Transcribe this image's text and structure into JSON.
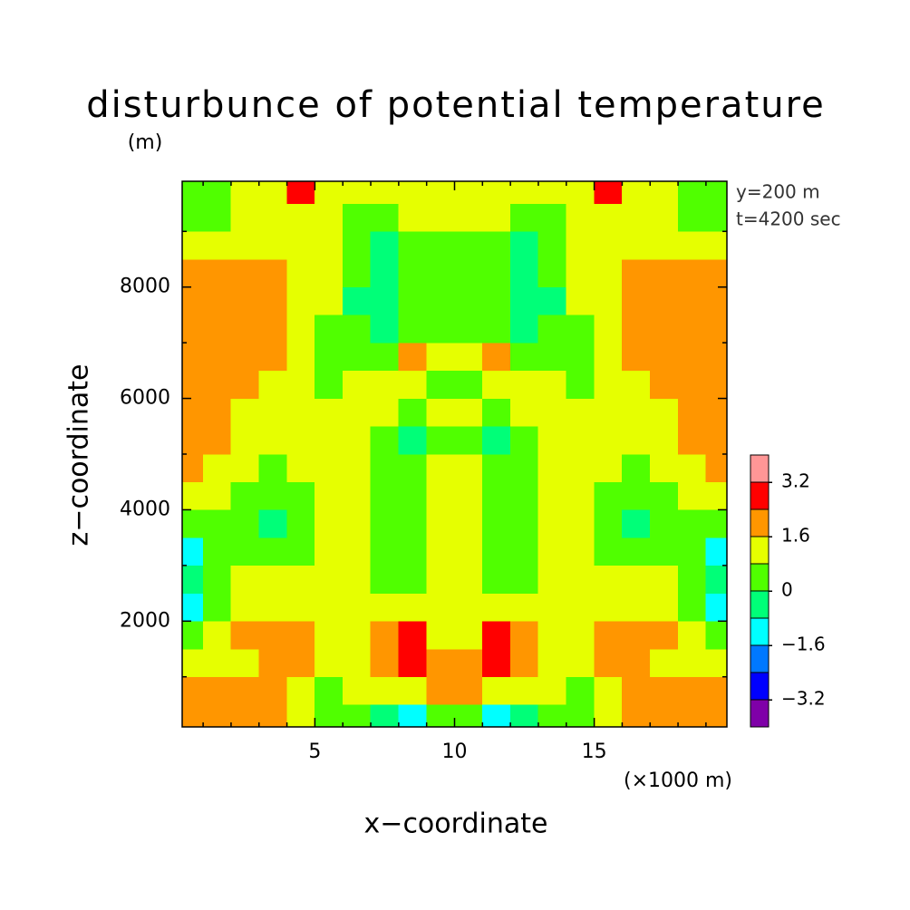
{
  "chart_data": {
    "type": "contour",
    "title": "disturbunce of potential temperature",
    "y_unit": "(m)",
    "annotations": [
      "y=200 m",
      "t=4200 sec"
    ],
    "xlabel": "x−coordinate",
    "ylabel": "z−coordinate",
    "x_unit": "(×1000 m)",
    "xlim": [
      0.25,
      19.75
    ],
    "ylim": [
      100,
      9900
    ],
    "xticks": [
      5,
      10,
      15
    ],
    "xminorticks": [
      1,
      2,
      3,
      4,
      6,
      7,
      8,
      9,
      11,
      12,
      13,
      14,
      16,
      17,
      18,
      19
    ],
    "yticks": [
      2000,
      4000,
      6000,
      8000
    ],
    "yminorticks": [
      1000,
      3000,
      5000,
      7000,
      9000
    ],
    "levels": [
      -4.0,
      -3.2,
      -2.4,
      -1.6,
      -0.8,
      0,
      0.8,
      1.6,
      2.4,
      3.2,
      4.0
    ],
    "colors": [
      "#7f00a8",
      "#0000ff",
      "#0078ff",
      "#00ffff",
      "#00ff78",
      "#50ff00",
      "#e6ff00",
      "#ff9600",
      "#ff0000",
      "#ff9696"
    ],
    "colorbar_ticks": [
      {
        "value": -3.2,
        "label": "−3.2"
      },
      {
        "value": -1.6,
        "label": "−1.6"
      },
      0,
      1.6,
      3.2
    ],
    "x": [
      0.5,
      1.5,
      2.5,
      3.5,
      4.5,
      5.5,
      6.5,
      7.5,
      8.5,
      9.5,
      10.5,
      11.5,
      12.5,
      13.5,
      14.5,
      15.5,
      16.5,
      17.5,
      18.5,
      19.5
    ],
    "z": [
      250,
      750,
      1250,
      1750,
      2250,
      2750,
      3250,
      3750,
      4250,
      4750,
      5250,
      5750,
      6250,
      6750,
      7250,
      7750,
      8250,
      8750,
      9250,
      9750
    ],
    "values": [
      [
        2.0,
        2.0,
        2.0,
        2.0,
        1.2,
        0.4,
        0.4,
        -0.4,
        -1.2,
        0.4,
        0.4,
        -1.2,
        -0.4,
        0.4,
        0.4,
        1.2,
        2.0,
        2.0,
        2.0,
        2.0
      ],
      [
        2.0,
        2.0,
        2.0,
        2.0,
        1.2,
        0.4,
        1.2,
        1.2,
        1.2,
        2.0,
        2.0,
        1.2,
        1.2,
        1.2,
        0.4,
        1.2,
        2.0,
        2.0,
        2.0,
        2.0
      ],
      [
        1.2,
        1.2,
        1.2,
        2.0,
        2.0,
        1.2,
        1.2,
        2.0,
        2.8,
        2.0,
        2.0,
        2.8,
        2.0,
        1.2,
        1.2,
        2.0,
        2.0,
        1.2,
        1.2,
        1.2
      ],
      [
        0.4,
        1.2,
        2.0,
        2.0,
        2.0,
        1.2,
        1.2,
        2.0,
        2.8,
        1.2,
        1.2,
        2.8,
        2.0,
        1.2,
        1.2,
        2.0,
        2.0,
        2.0,
        1.2,
        0.4
      ],
      [
        -1.2,
        0.4,
        1.2,
        1.2,
        1.2,
        1.2,
        1.2,
        1.2,
        1.2,
        1.2,
        1.2,
        1.2,
        1.2,
        1.2,
        1.2,
        1.2,
        1.2,
        1.2,
        0.4,
        -1.2
      ],
      [
        -0.4,
        0.4,
        1.2,
        1.2,
        1.2,
        1.2,
        1.2,
        0.4,
        0.4,
        1.2,
        1.2,
        0.4,
        0.4,
        1.2,
        1.2,
        1.2,
        1.2,
        1.2,
        0.4,
        -0.4
      ],
      [
        -1.2,
        0.4,
        0.4,
        0.4,
        0.4,
        1.2,
        1.2,
        0.4,
        0.4,
        1.2,
        1.2,
        0.4,
        0.4,
        1.2,
        1.2,
        0.4,
        0.4,
        0.4,
        0.4,
        -1.2
      ],
      [
        0.4,
        0.4,
        0.4,
        -0.4,
        0.4,
        1.2,
        1.2,
        0.4,
        0.4,
        1.2,
        1.2,
        0.4,
        0.4,
        1.2,
        1.2,
        0.4,
        -0.4,
        0.4,
        0.4,
        0.4
      ],
      [
        1.2,
        1.2,
        0.4,
        0.4,
        0.4,
        1.2,
        1.2,
        0.4,
        0.4,
        1.2,
        1.2,
        0.4,
        0.4,
        1.2,
        1.2,
        0.4,
        0.4,
        0.4,
        1.2,
        1.2
      ],
      [
        2.0,
        1.2,
        1.2,
        0.4,
        1.2,
        1.2,
        1.2,
        0.4,
        0.4,
        1.2,
        1.2,
        0.4,
        0.4,
        1.2,
        1.2,
        1.2,
        0.4,
        1.2,
        1.2,
        2.0
      ],
      [
        2.0,
        2.0,
        1.2,
        1.2,
        1.2,
        1.2,
        1.2,
        0.4,
        -0.4,
        0.4,
        0.4,
        -0.4,
        0.4,
        1.2,
        1.2,
        1.2,
        1.2,
        1.2,
        2.0,
        2.0
      ],
      [
        2.0,
        2.0,
        1.2,
        1.2,
        1.2,
        1.2,
        1.2,
        1.2,
        0.4,
        1.2,
        1.2,
        0.4,
        1.2,
        1.2,
        1.2,
        1.2,
        1.2,
        1.2,
        2.0,
        2.0
      ],
      [
        2.0,
        2.0,
        2.0,
        1.2,
        1.2,
        0.4,
        1.2,
        1.2,
        1.2,
        0.4,
        0.4,
        1.2,
        1.2,
        1.2,
        0.4,
        1.2,
        1.2,
        2.0,
        2.0,
        2.0
      ],
      [
        2.0,
        2.0,
        2.0,
        2.0,
        1.2,
        0.4,
        0.4,
        0.4,
        2.0,
        1.2,
        1.2,
        2.0,
        0.4,
        0.4,
        0.4,
        1.2,
        2.0,
        2.0,
        2.0,
        2.0
      ],
      [
        2.0,
        2.0,
        2.0,
        2.0,
        1.2,
        0.4,
        0.4,
        -0.4,
        0.4,
        0.4,
        0.4,
        0.4,
        -0.4,
        0.4,
        0.4,
        1.2,
        2.0,
        2.0,
        2.0,
        2.0
      ],
      [
        2.0,
        2.0,
        2.0,
        2.0,
        1.2,
        1.2,
        -0.4,
        -0.4,
        0.4,
        0.4,
        0.4,
        0.4,
        -0.4,
        -0.4,
        1.2,
        1.2,
        2.0,
        2.0,
        2.0,
        2.0
      ],
      [
        2.0,
        2.0,
        2.0,
        2.0,
        1.2,
        1.2,
        0.4,
        -0.4,
        0.4,
        0.4,
        0.4,
        0.4,
        -0.4,
        0.4,
        1.2,
        1.2,
        2.0,
        2.0,
        2.0,
        2.0
      ],
      [
        1.2,
        1.2,
        1.2,
        1.2,
        1.2,
        1.2,
        0.4,
        -0.4,
        0.4,
        0.4,
        0.4,
        0.4,
        -0.4,
        0.4,
        1.2,
        1.2,
        1.2,
        1.2,
        1.2,
        1.2
      ],
      [
        0.4,
        0.4,
        1.2,
        1.2,
        1.2,
        1.2,
        0.4,
        0.4,
        1.2,
        1.2,
        1.2,
        1.2,
        0.4,
        0.4,
        1.2,
        1.2,
        1.2,
        1.2,
        0.4,
        0.4
      ],
      [
        0.4,
        0.4,
        1.2,
        1.2,
        2.8,
        1.2,
        1.2,
        1.2,
        1.2,
        1.2,
        1.2,
        1.2,
        1.2,
        1.2,
        1.2,
        2.8,
        1.2,
        1.2,
        0.4,
        0.4
      ]
    ]
  }
}
